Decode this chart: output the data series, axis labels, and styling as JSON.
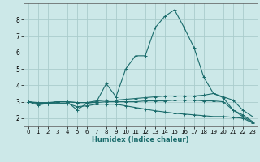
{
  "title": "",
  "xlabel": "Humidex (Indice chaleur)",
  "background_color": "#cce8e8",
  "grid_color": "#aacccc",
  "line_color": "#1a6b6b",
  "xlim": [
    -0.5,
    23.5
  ],
  "ylim": [
    1.5,
    9.0
  ],
  "yticks": [
    2,
    3,
    4,
    5,
    6,
    7,
    8
  ],
  "xticks": [
    0,
    1,
    2,
    3,
    4,
    5,
    6,
    7,
    8,
    9,
    10,
    11,
    12,
    13,
    14,
    15,
    16,
    17,
    18,
    19,
    20,
    21,
    22,
    23
  ],
  "series": [
    [
      3.0,
      2.8,
      2.9,
      3.0,
      3.0,
      2.5,
      2.9,
      3.0,
      4.1,
      3.3,
      5.0,
      5.8,
      5.8,
      7.5,
      8.2,
      8.6,
      7.5,
      6.3,
      4.5,
      3.5,
      3.25,
      2.5,
      2.1,
      1.75
    ],
    [
      3.0,
      2.9,
      2.9,
      3.0,
      3.0,
      2.95,
      2.95,
      3.05,
      3.1,
      3.1,
      3.15,
      3.2,
      3.25,
      3.3,
      3.35,
      3.35,
      3.35,
      3.35,
      3.4,
      3.5,
      3.3,
      3.1,
      2.5,
      2.1
    ],
    [
      3.0,
      2.95,
      2.95,
      3.0,
      3.0,
      2.95,
      2.95,
      2.95,
      3.0,
      3.0,
      3.0,
      3.0,
      3.05,
      3.05,
      3.05,
      3.1,
      3.1,
      3.1,
      3.05,
      3.05,
      3.0,
      2.5,
      2.2,
      1.8
    ],
    [
      3.0,
      2.9,
      2.9,
      2.9,
      2.9,
      2.7,
      2.75,
      2.85,
      2.85,
      2.85,
      2.75,
      2.65,
      2.55,
      2.45,
      2.38,
      2.3,
      2.25,
      2.2,
      2.15,
      2.1,
      2.1,
      2.05,
      2.0,
      1.72
    ]
  ]
}
